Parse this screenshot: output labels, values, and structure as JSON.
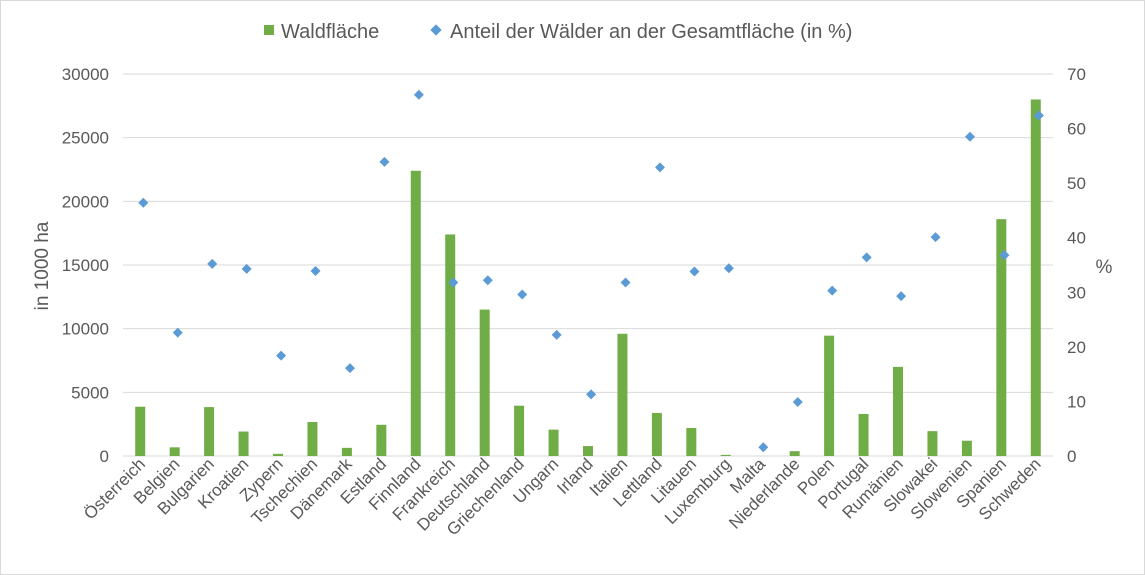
{
  "chart_data": {
    "type": "bar",
    "categories": [
      "Österreich",
      "Belgien",
      "Bulgarien",
      "Kroatien",
      "Zypern",
      "Tschechien",
      "Dänemark",
      "Estland",
      "Finnland",
      "Frankreich",
      "Deutschland",
      "Griechenland",
      "Ungarn",
      "Irland",
      "Italien",
      "Lettland",
      "Litauen",
      "Luxemburg",
      "Malta",
      "Niederlande",
      "Polen",
      "Portugal",
      "Rumänien",
      "Slowakei",
      "Slowenien",
      "Spanien",
      "Schweden"
    ],
    "series": [
      {
        "name": "Waldfläche",
        "type": "bar",
        "axis": "left",
        "color": "#70ad47",
        "values": [
          3870,
          680,
          3840,
          1920,
          170,
          2670,
          640,
          2450,
          22400,
          17400,
          11500,
          3950,
          2070,
          780,
          9600,
          3380,
          2200,
          90,
          0,
          380,
          9450,
          3300,
          7000,
          1950,
          1200,
          18600,
          28000
        ]
      },
      {
        "name": "Anteil der Wälder an der Gesamtfläche (in %)",
        "type": "scatter",
        "axis": "right",
        "color": "#5b9bd5",
        "values": [
          46.4,
          22.6,
          35.2,
          34.3,
          18.4,
          33.9,
          16.1,
          53.9,
          66.2,
          31.8,
          32.2,
          29.6,
          22.2,
          11.3,
          31.8,
          52.9,
          33.8,
          34.4,
          1.6,
          9.9,
          30.3,
          36.4,
          29.3,
          40.1,
          58.5,
          36.8,
          62.4
        ]
      }
    ],
    "ylabel": "in 1000 ha",
    "y2label": "%",
    "ylim": [
      0,
      30000
    ],
    "y2lim": [
      0,
      70
    ],
    "yticks": [
      "0",
      "5000",
      "10000",
      "15000",
      "20000",
      "25000",
      "30000"
    ],
    "y2ticks": [
      "0",
      "10",
      "20",
      "30",
      "40",
      "50",
      "60",
      "70"
    ],
    "grid": true,
    "legend_position": "top"
  }
}
